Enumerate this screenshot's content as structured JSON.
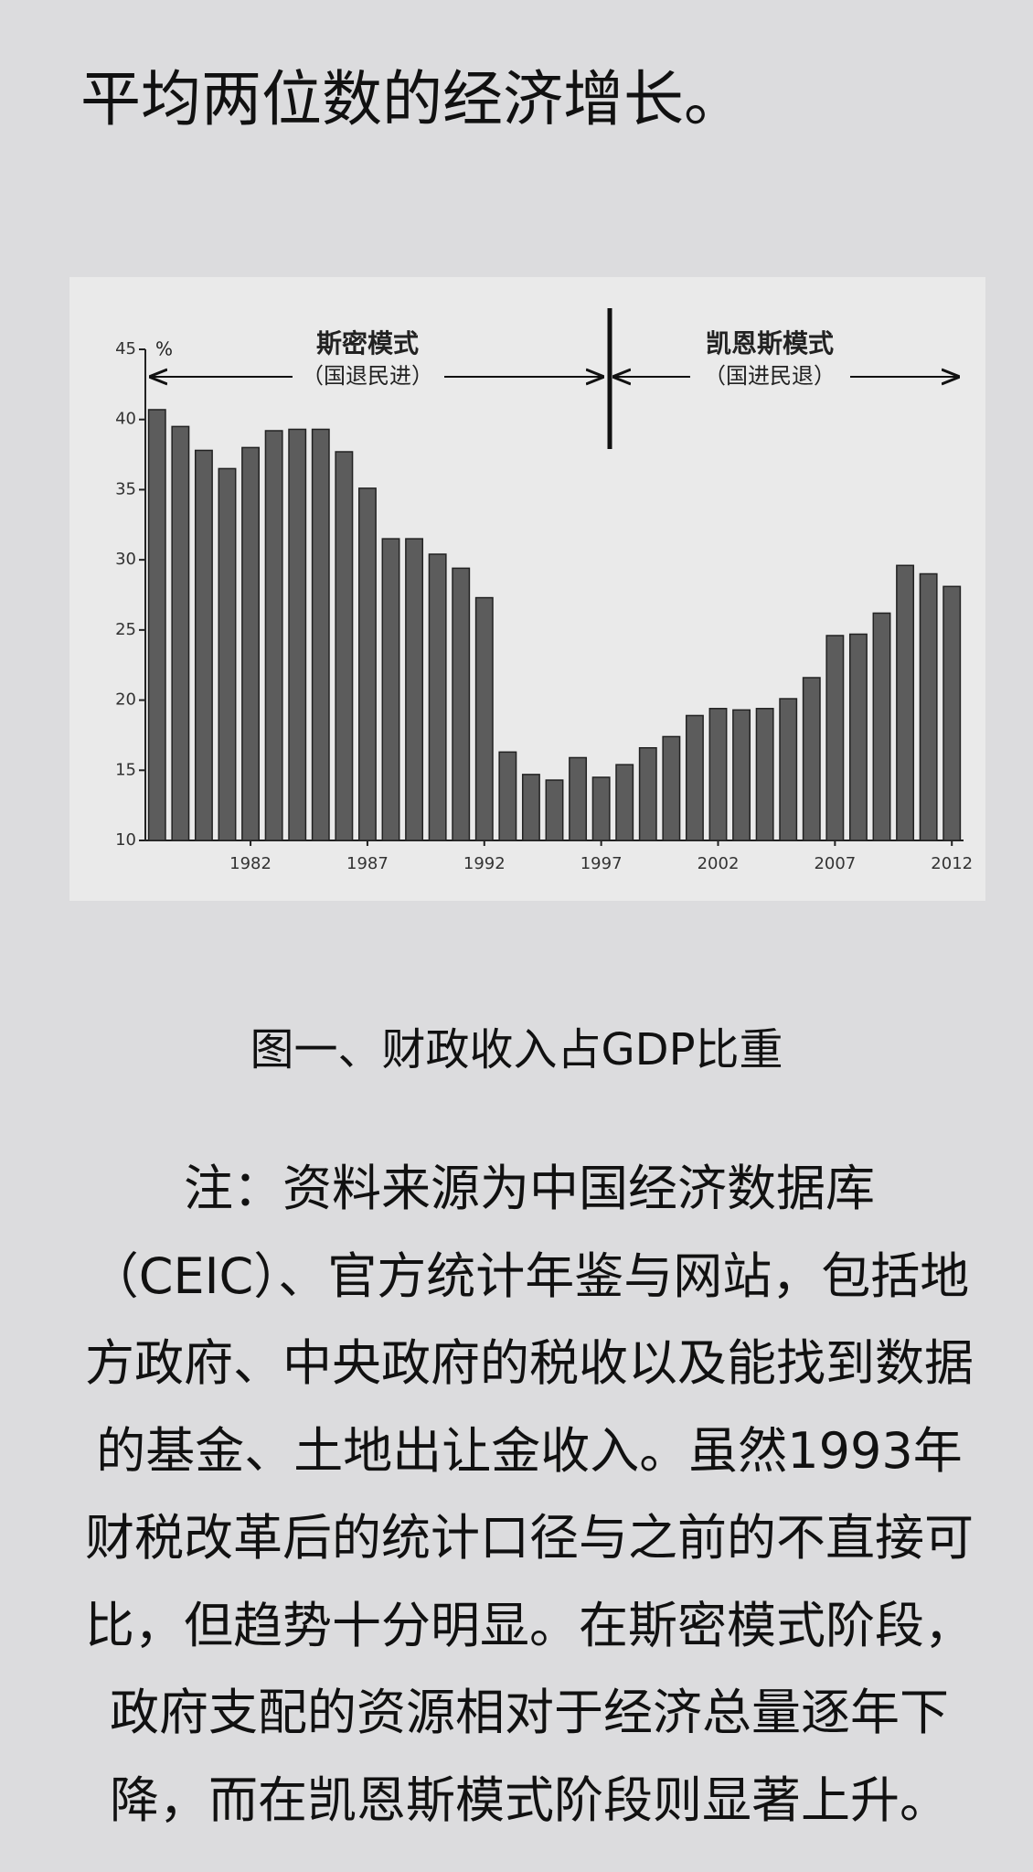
{
  "header": {
    "title": "平均两位数的经济增长。"
  },
  "chart_data": {
    "type": "bar",
    "y_unit": "%",
    "annotations": [
      "斯密模式",
      "（国退民进）",
      "凯恩斯模式",
      "（国进民退）"
    ],
    "x": [
      1978,
      1979,
      1980,
      1981,
      1982,
      1983,
      1984,
      1985,
      1986,
      1987,
      1988,
      1989,
      1990,
      1991,
      1992,
      1993,
      1994,
      1995,
      1996,
      1997,
      1998,
      1999,
      2000,
      2001,
      2002,
      2003,
      2004,
      2005,
      2006,
      2007,
      2008,
      2009,
      2010,
      2011,
      2012
    ],
    "values": [
      40.7,
      39.5,
      37.8,
      36.5,
      38.0,
      39.2,
      39.3,
      39.3,
      37.7,
      35.1,
      31.5,
      31.5,
      30.4,
      29.4,
      27.3,
      16.3,
      14.7,
      14.3,
      15.9,
      14.5,
      15.4,
      16.6,
      17.4,
      18.9,
      19.4,
      19.3,
      19.4,
      20.1,
      21.6,
      24.6,
      24.7,
      26.2,
      29.6,
      29.0,
      28.1
    ],
    "color": "#5c5c5c",
    "xlim": [
      1977.5,
      2012.5
    ],
    "xticks": [
      1982,
      1987,
      1992,
      1997,
      2002,
      2007,
      2012
    ],
    "ylim": [
      10,
      45
    ],
    "yticks": [
      10,
      15,
      20,
      25,
      30,
      35,
      40,
      45
    ]
  },
  "caption": "图一、财政收入占GDP比重",
  "note": "注：资料来源为中国经济数据库（CEIC）、官方统计年鉴与网站，包括地方政府、中央政府的税收以及能找到数据的基金、土地出让金收入。虽然1993年财税改革后的统计口径与之前的不直接可比，但趋势十分明显。在斯密模式阶段，政府支配的资源相对于经济总量逐年下降，而在凯恩斯模式阶段则显著上升。"
}
